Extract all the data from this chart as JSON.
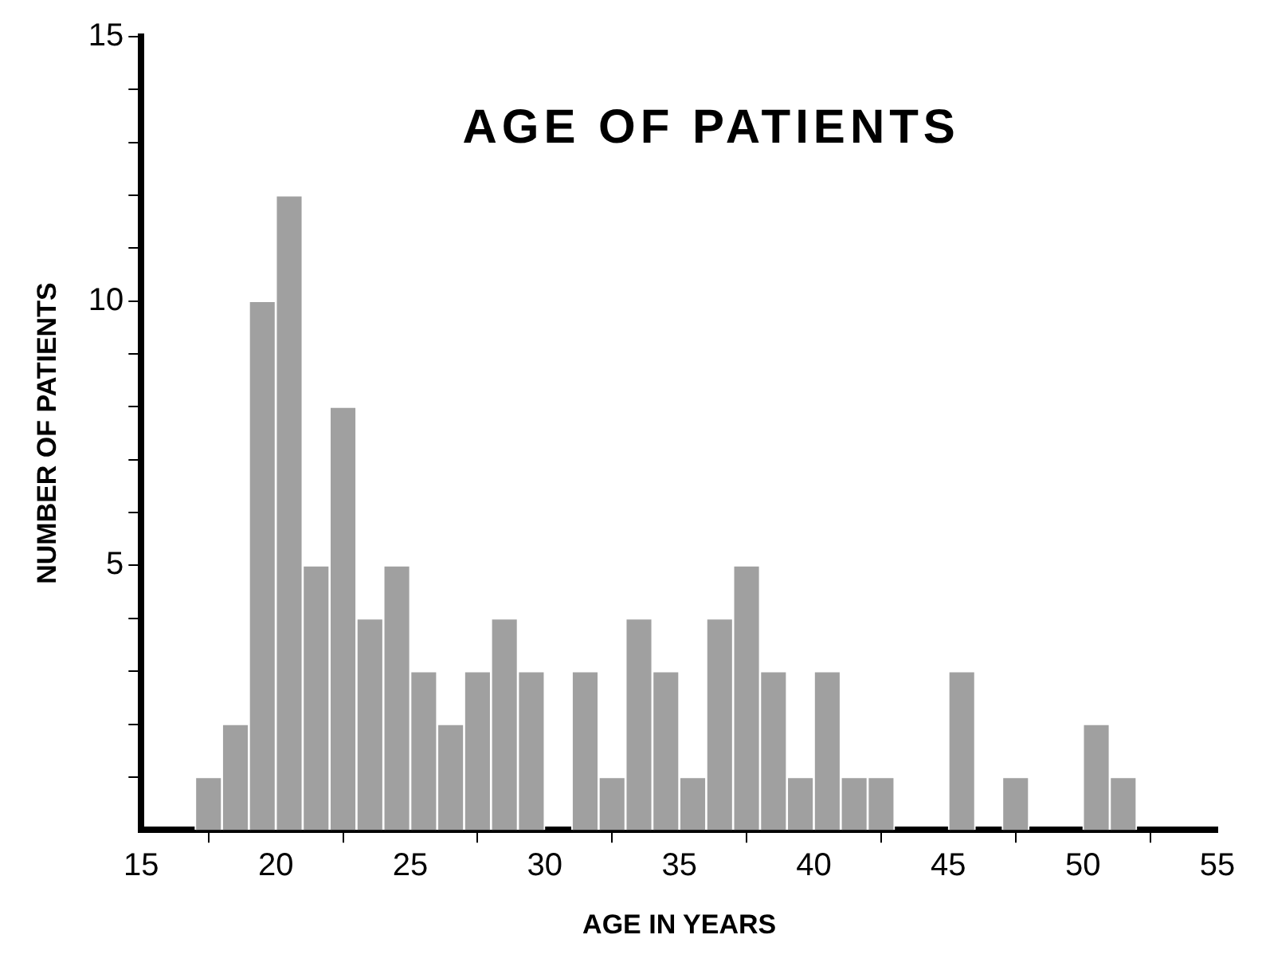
{
  "chart_data": {
    "type": "histogram",
    "title": "AGE OF PATIENTS",
    "xlabel": "AGE IN YEARS",
    "ylabel": "NUMBER OF PATIENTS",
    "bins": [
      17,
      18,
      19,
      20,
      21,
      22,
      23,
      24,
      25,
      26,
      27,
      28,
      29,
      30,
      31,
      32,
      33,
      34,
      35,
      36,
      37,
      38,
      39,
      40,
      41,
      42,
      43,
      44,
      45,
      46,
      47,
      48,
      49,
      50,
      51,
      52
    ],
    "values": [
      1,
      2,
      10,
      12,
      5,
      8,
      4,
      5,
      3,
      2,
      3,
      4,
      3,
      0,
      3,
      1,
      4,
      3,
      1,
      4,
      5,
      3,
      1,
      3,
      1,
      1,
      0,
      0,
      3,
      0,
      1,
      0,
      0,
      2,
      1
    ],
    "color": "#a0a0a0",
    "xlim": [
      15,
      55
    ],
    "xticks": [
      15,
      20,
      25,
      30,
      35,
      40,
      45,
      50,
      55
    ],
    "ylim": [
      0,
      15
    ],
    "yticks": [
      {
        "value": 1,
        "label": null
      },
      {
        "value": 2,
        "label": null
      },
      {
        "value": 3,
        "label": null
      },
      {
        "value": 4,
        "label": null
      },
      5,
      {
        "value": 6,
        "label": null
      },
      {
        "value": 7,
        "label": null
      },
      {
        "value": 8,
        "label": null
      },
      {
        "value": 9,
        "label": null
      },
      10,
      {
        "value": 11,
        "label": null
      },
      {
        "value": 12,
        "label": null
      },
      {
        "value": 13,
        "label": null
      },
      {
        "value": 14,
        "label": null
      },
      15
    ],
    "grid": false,
    "legend": false
  }
}
